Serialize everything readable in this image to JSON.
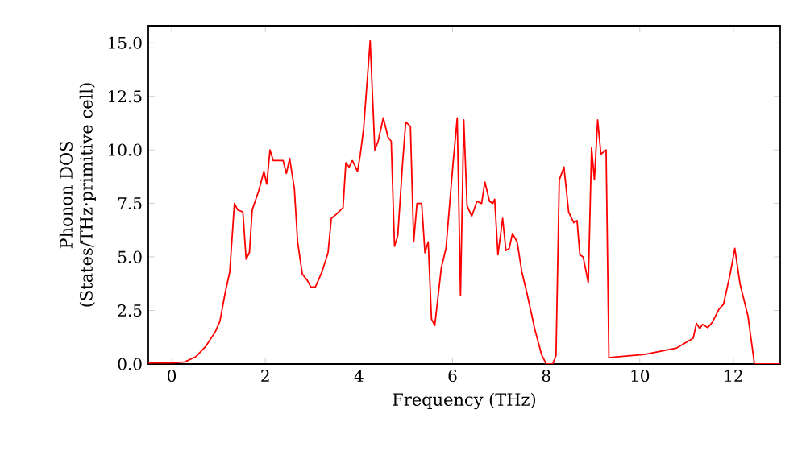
{
  "chart_data": {
    "type": "line",
    "xlabel": "Frequency (THz)",
    "ylabel": "Phonon DOS (States/THz·primitive cell)",
    "xlim": [
      -0.5,
      13
    ],
    "ylim": [
      0,
      15.8
    ],
    "xticks": [
      0,
      2,
      4,
      6,
      8,
      10,
      12
    ],
    "yticks": [
      {
        "value": 0,
        "label": "0.0"
      },
      {
        "value": 2.5,
        "label": "2.5"
      },
      {
        "value": 5,
        "label": "5.0"
      },
      {
        "value": 7.5,
        "label": "7.5"
      },
      {
        "value": 10,
        "label": "10.0"
      },
      {
        "value": 12.5,
        "label": "12.5"
      },
      {
        "value": 15,
        "label": "15.0"
      }
    ],
    "grid": false,
    "marker": "none",
    "line_style": "solid",
    "series": [
      {
        "color": "#ff0000",
        "x": [
          -0.5,
          0,
          0.28,
          0.52,
          0.72,
          0.93,
          1.03,
          1.14,
          1.24,
          1.34,
          1.41,
          1.52,
          1.59,
          1.66,
          1.72,
          1.86,
          1.97,
          2.03,
          2.1,
          2.17,
          2.24,
          2.38,
          2.45,
          2.52,
          2.62,
          2.69,
          2.79,
          2.9,
          2.97,
          3.07,
          3.21,
          3.34,
          3.41,
          3.52,
          3.66,
          3.72,
          3.79,
          3.86,
          3.97,
          4.03,
          4.1,
          4.24,
          4.34,
          4.41,
          4.52,
          4.62,
          4.69,
          4.76,
          4.83,
          4.93,
          5.0,
          5.1,
          5.17,
          5.24,
          5.34,
          5.41,
          5.48,
          5.55,
          5.62,
          5.76,
          5.86,
          6.0,
          6.1,
          6.17,
          6.24,
          6.31,
          6.41,
          6.52,
          6.62,
          6.69,
          6.79,
          6.86,
          6.9,
          6.97,
          7.07,
          7.14,
          7.21,
          7.28,
          7.38,
          7.48,
          7.59,
          7.76,
          7.9,
          8.0,
          8.14,
          8.21,
          8.28,
          8.38,
          8.48,
          8.59,
          8.66,
          8.72,
          8.79,
          8.9,
          8.97,
          9.03,
          9.1,
          9.17,
          9.28,
          9.34,
          10.1,
          10.79,
          11.14,
          11.21,
          11.28,
          11.34,
          11.45,
          11.55,
          11.69,
          11.79,
          11.93,
          12.03,
          12.14,
          12.31,
          12.45,
          13
        ],
        "values": [
          0.05,
          0.05,
          0.1,
          0.35,
          0.8,
          1.5,
          2.0,
          3.3,
          4.3,
          7.5,
          7.2,
          7.1,
          4.9,
          5.2,
          7.2,
          8.1,
          9.0,
          8.4,
          10.0,
          9.5,
          9.5,
          9.5,
          8.9,
          9.6,
          8.2,
          5.7,
          4.2,
          3.9,
          3.6,
          3.6,
          4.3,
          5.2,
          6.8,
          7.0,
          7.3,
          9.4,
          9.2,
          9.5,
          9.0,
          9.8,
          11.0,
          15.1,
          10.0,
          10.4,
          11.5,
          10.6,
          10.4,
          5.5,
          6.0,
          9.3,
          11.3,
          11.1,
          5.7,
          7.5,
          7.5,
          5.2,
          5.7,
          2.1,
          1.8,
          4.5,
          5.4,
          9.1,
          11.5,
          3.2,
          11.4,
          7.4,
          6.9,
          7.6,
          7.5,
          8.5,
          7.6,
          7.5,
          7.7,
          5.1,
          6.8,
          5.3,
          5.4,
          6.1,
          5.7,
          4.3,
          3.3,
          1.6,
          0.45,
          0,
          0,
          0.4,
          8.6,
          9.2,
          7.1,
          6.6,
          6.7,
          5.1,
          5.0,
          3.8,
          10.1,
          8.6,
          11.4,
          9.8,
          10.0,
          0.3,
          0.45,
          0.75,
          1.2,
          1.9,
          1.65,
          1.85,
          1.7,
          1.95,
          2.55,
          2.8,
          4.2,
          5.4,
          3.75,
          2.25,
          0,
          0
        ]
      }
    ]
  }
}
